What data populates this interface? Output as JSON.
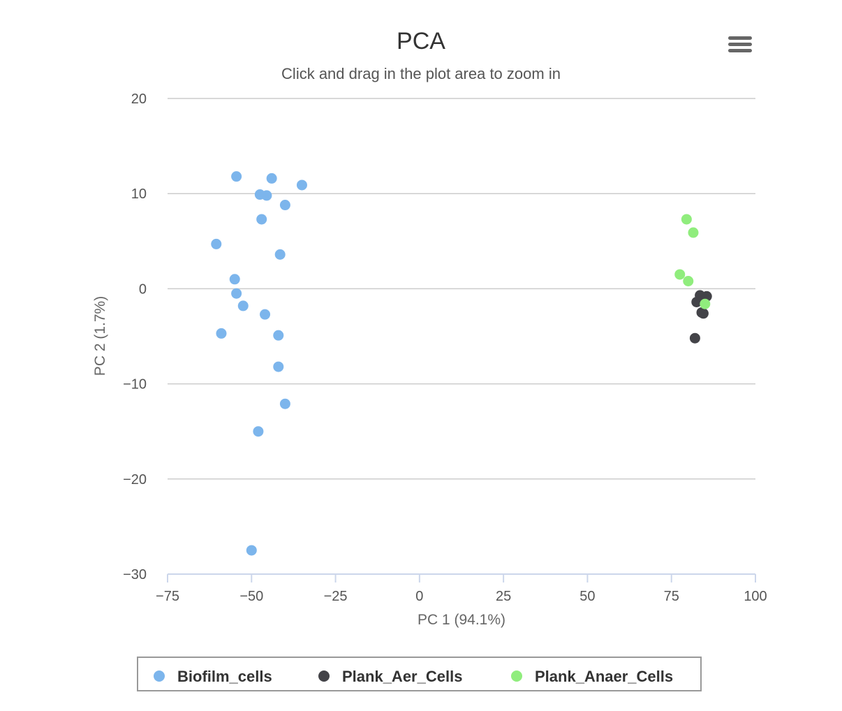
{
  "header": {
    "title": "PCA",
    "subtitle": "Click and drag in the plot area to zoom in",
    "menu_icon": "hamburger-menu-icon"
  },
  "chart_data": {
    "type": "scatter",
    "title": "PCA",
    "subtitle": "Click and drag in the plot area to zoom in",
    "xlabel": "PC 1 (94.1%)",
    "ylabel": "PC 2 (1.7%)",
    "xlim": [
      -75,
      100
    ],
    "ylim": [
      -30,
      20
    ],
    "xticks": [
      -75,
      -50,
      -25,
      0,
      25,
      50,
      75,
      100
    ],
    "yticks": [
      -30,
      -20,
      -10,
      0,
      10,
      20
    ],
    "xtick_labels": [
      "−75",
      "−50",
      "−25",
      "0",
      "25",
      "50",
      "75",
      "100"
    ],
    "ytick_labels": [
      "−30",
      "−20",
      "−10",
      "0",
      "10",
      "20"
    ],
    "grid": "horizontal",
    "legend_position": "bottom-center",
    "series": [
      {
        "name": "Biofilm_cells",
        "color": "#7cb5ec",
        "points": [
          [
            -54.5,
            11.8
          ],
          [
            -44,
            11.6
          ],
          [
            -35,
            10.9
          ],
          [
            -47.5,
            9.9
          ],
          [
            -45.5,
            9.8
          ],
          [
            -40,
            8.8
          ],
          [
            -47,
            7.3
          ],
          [
            -60.5,
            4.7
          ],
          [
            -41.5,
            3.6
          ],
          [
            -55,
            1.0
          ],
          [
            -54.5,
            -0.5
          ],
          [
            -52.5,
            -1.8
          ],
          [
            -46,
            -2.7
          ],
          [
            -59,
            -4.7
          ],
          [
            -42,
            -4.9
          ],
          [
            -42,
            -8.2
          ],
          [
            -40,
            -12.1
          ],
          [
            -48,
            -15.0
          ],
          [
            -50,
            -27.5
          ]
        ]
      },
      {
        "name": "Plank_Aer_Cells",
        "color": "#434348",
        "points": [
          [
            83.5,
            -0.7
          ],
          [
            85.5,
            -0.8
          ],
          [
            82.5,
            -1.4
          ],
          [
            84,
            -2.5
          ],
          [
            84.5,
            -2.6
          ],
          [
            82,
            -5.2
          ]
        ]
      },
      {
        "name": "Plank_Anaer_Cells",
        "color": "#90ed7d",
        "points": [
          [
            79.5,
            7.3
          ],
          [
            81.5,
            5.9
          ],
          [
            77.5,
            1.5
          ],
          [
            80,
            0.8
          ],
          [
            85,
            -1.6
          ]
        ]
      }
    ]
  }
}
